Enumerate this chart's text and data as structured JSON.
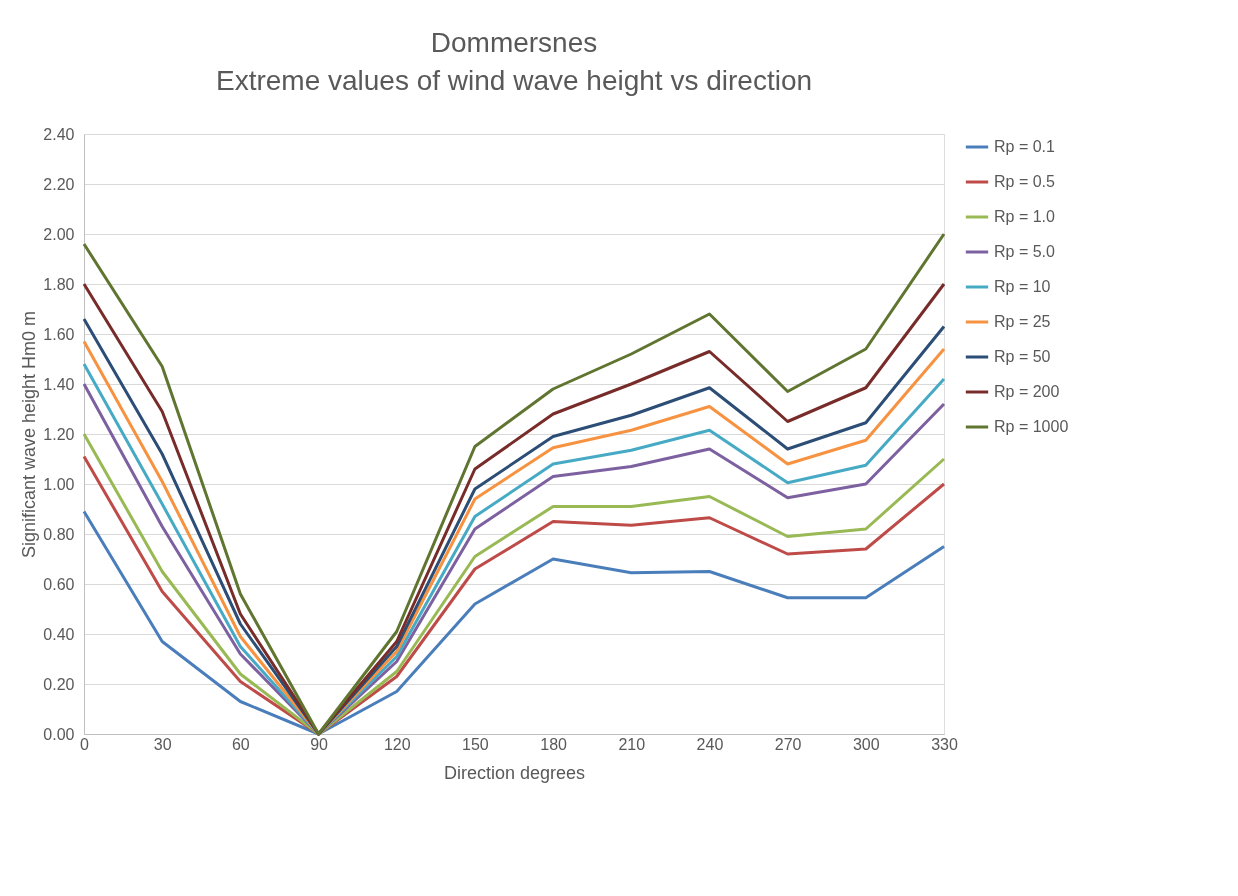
{
  "chart_data": {
    "type": "line",
    "title": "Dommersnes",
    "subtitle": "Extreme values of wind wave height vs direction",
    "xlabel": "Direction degrees",
    "ylabel": "Significant wave height Hm0 m",
    "categories": [
      "0",
      "30",
      "60",
      "90",
      "120",
      "150",
      "180",
      "210",
      "240",
      "270",
      "300",
      "330"
    ],
    "ylim": [
      0,
      2.4
    ],
    "yticks": [
      {
        "value": 0,
        "label": "0.00"
      },
      {
        "value": 0.2,
        "label": "0.20"
      },
      {
        "value": 0.4,
        "label": "0.40"
      },
      {
        "value": 0.6,
        "label": "0.60"
      },
      {
        "value": 0.8,
        "label": "0.80"
      },
      {
        "value": 1.0,
        "label": "1.00"
      },
      {
        "value": 1.2,
        "label": "1.20"
      },
      {
        "value": 1.4,
        "label": "1.40"
      },
      {
        "value": 1.6,
        "label": "1.60"
      },
      {
        "value": 1.8,
        "label": "1.80"
      },
      {
        "value": 2.0,
        "label": "2.00"
      },
      {
        "value": 2.2,
        "label": "2.20"
      },
      {
        "value": 2.4,
        "label": "2.40"
      }
    ],
    "grid": "y",
    "legend": "right",
    "marker": "none",
    "line_style": "solid",
    "series": [
      {
        "name": "Rp = 0.1",
        "color": "#4a7ebb",
        "values": [
          0.89,
          0.37,
          0.13,
          0,
          0.17,
          0.52,
          0.7,
          0.645,
          0.65,
          0.545,
          0.545,
          0.75
        ]
      },
      {
        "name": "Rp = 0.5",
        "color": "#be4b48",
        "values": [
          1.11,
          0.57,
          0.21,
          0,
          0.23,
          0.66,
          0.85,
          0.835,
          0.865,
          0.72,
          0.74,
          1.0
        ]
      },
      {
        "name": "Rp = 1.0",
        "color": "#98b954",
        "values": [
          1.2,
          0.65,
          0.24,
          0,
          0.25,
          0.71,
          0.91,
          0.91,
          0.95,
          0.79,
          0.82,
          1.1
        ]
      },
      {
        "name": "Rp = 5.0",
        "color": "#7d60a0",
        "values": [
          1.4,
          0.83,
          0.32,
          0,
          0.29,
          0.82,
          1.03,
          1.07,
          1.14,
          0.945,
          1.0,
          1.32
        ]
      },
      {
        "name": "Rp = 10",
        "color": "#46aac5",
        "values": [
          1.48,
          0.92,
          0.35,
          0,
          0.31,
          0.87,
          1.08,
          1.135,
          1.215,
          1.005,
          1.075,
          1.42
        ]
      },
      {
        "name": "Rp = 25",
        "color": "#f69240",
        "values": [
          1.57,
          1.01,
          0.39,
          0,
          0.33,
          0.94,
          1.145,
          1.215,
          1.31,
          1.08,
          1.175,
          1.54
        ]
      },
      {
        "name": "Rp = 50",
        "color": "#2c4d75",
        "values": [
          1.66,
          1.12,
          0.44,
          0,
          0.35,
          0.98,
          1.19,
          1.275,
          1.385,
          1.14,
          1.245,
          1.63
        ]
      },
      {
        "name": "Rp = 200",
        "color": "#772c2a",
        "values": [
          1.8,
          1.29,
          0.48,
          0,
          0.37,
          1.06,
          1.28,
          1.4,
          1.53,
          1.25,
          1.385,
          1.8
        ]
      },
      {
        "name": "Rp = 1000",
        "color": "#5f7530",
        "values": [
          1.96,
          1.47,
          0.56,
          0,
          0.41,
          1.15,
          1.38,
          1.52,
          1.68,
          1.37,
          1.54,
          2.0
        ]
      }
    ]
  }
}
